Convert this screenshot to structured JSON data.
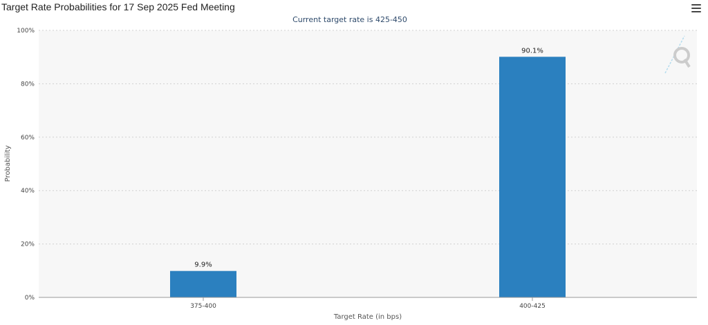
{
  "header": {
    "title": "Target Rate Probabilities for 17 Sep 2025 Fed Meeting",
    "menu_icon": "hamburger-menu-icon"
  },
  "watermark_icon": "q-logo-icon",
  "colors": {
    "bar": "#2b80bf",
    "plot_background": "#f7f7f7",
    "grid": "#cfcfcf",
    "axis": "#999999"
  },
  "chart_data": {
    "type": "bar",
    "title": "Target Rate Probabilities for 17 Sep 2025 Fed Meeting",
    "subtitle": "Current target rate is 425-450",
    "xlabel": "Target Rate (in bps)",
    "ylabel": "Probability",
    "categories": [
      "375-400",
      "400-425"
    ],
    "values": [
      9.9,
      90.1
    ],
    "data_labels": [
      "9.9%",
      "90.1%"
    ],
    "ylim": [
      0,
      100
    ],
    "yticks": [
      0,
      20,
      40,
      60,
      80,
      100
    ],
    "ytick_labels": [
      "0%",
      "20%",
      "40%",
      "60%",
      "80%",
      "100%"
    ],
    "grid": true,
    "grid_style": "dotted",
    "legend": false
  }
}
